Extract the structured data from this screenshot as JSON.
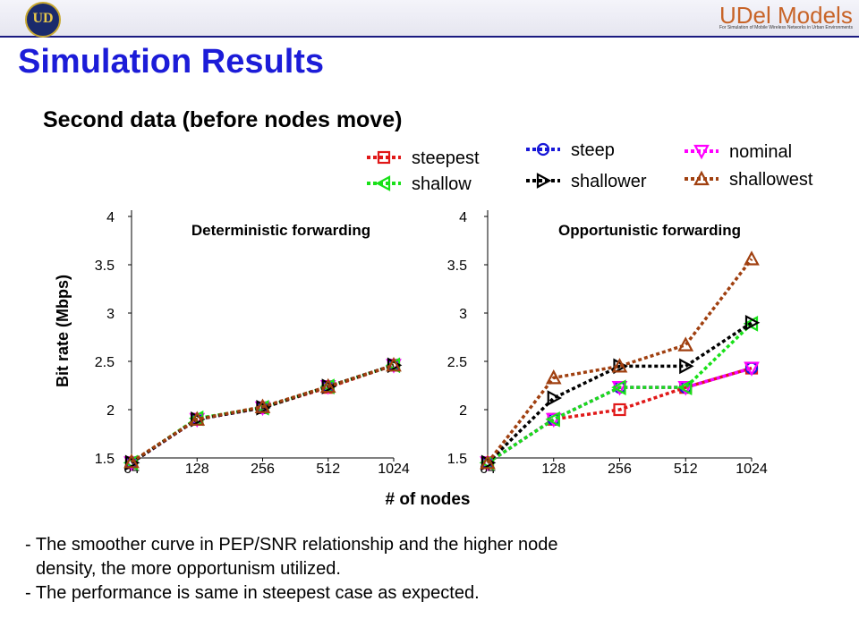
{
  "header": {
    "brand": "UDel Models",
    "brand_tagline": "For Simulation of Mobile Wireless Networks in Urban Environments",
    "seal_text": "UD"
  },
  "title": "Simulation Results",
  "subtitle": "Second data (before nodes move)",
  "legend": [
    {
      "name": "steepest",
      "color": "#e01818",
      "marker": "square"
    },
    {
      "name": "steep",
      "color": "#1818d8",
      "marker": "circle"
    },
    {
      "name": "nominal",
      "color": "#ff00ff",
      "marker": "triangle-down"
    },
    {
      "name": "shallow",
      "color": "#18e018",
      "marker": "triangle-left"
    },
    {
      "name": "shallower",
      "color": "#000000",
      "marker": "triangle-right"
    },
    {
      "name": "shallowest",
      "color": "#a04010",
      "marker": "triangle-up"
    }
  ],
  "shared_ylabel": "Bit rate (Mbps)",
  "shared_xlabel": "# of nodes",
  "chart_data": [
    {
      "type": "line",
      "title": "Deterministic forwarding",
      "categories": [
        "64",
        "128",
        "256",
        "512",
        "1024"
      ],
      "ylim": [
        1.5,
        4
      ],
      "yticks": [
        "1.5",
        "2",
        "2.5",
        "3",
        "3.5",
        "4"
      ],
      "series": [
        {
          "name": "steepest",
          "values": [
            1.45,
            1.9,
            2.02,
            2.23,
            2.46
          ]
        },
        {
          "name": "steep",
          "values": [
            1.45,
            1.9,
            2.02,
            2.24,
            2.46
          ]
        },
        {
          "name": "nominal",
          "values": [
            1.45,
            1.9,
            2.02,
            2.24,
            2.46
          ]
        },
        {
          "name": "shallow",
          "values": [
            1.45,
            1.91,
            2.02,
            2.24,
            2.46
          ]
        },
        {
          "name": "shallower",
          "values": [
            1.45,
            1.9,
            2.02,
            2.24,
            2.46
          ]
        },
        {
          "name": "shallowest",
          "values": [
            1.46,
            1.9,
            2.03,
            2.24,
            2.46
          ]
        }
      ]
    },
    {
      "type": "line",
      "title": "Opportunistic forwarding",
      "categories": [
        "64",
        "128",
        "256",
        "512",
        "1024"
      ],
      "ylim": [
        1.5,
        4
      ],
      "yticks": [
        "1.5",
        "2",
        "2.5",
        "3",
        "3.5",
        "4"
      ],
      "series": [
        {
          "name": "steepest",
          "values": [
            1.45,
            1.9,
            2.0,
            2.23,
            2.43
          ]
        },
        {
          "name": "steep",
          "values": [
            1.45,
            1.9,
            2.23,
            2.23,
            2.43
          ]
        },
        {
          "name": "nominal",
          "values": [
            1.45,
            1.9,
            2.23,
            2.23,
            2.43
          ]
        },
        {
          "name": "shallow",
          "values": [
            1.45,
            1.9,
            2.23,
            2.23,
            2.89
          ]
        },
        {
          "name": "shallower",
          "values": [
            1.45,
            2.12,
            2.45,
            2.45,
            2.9
          ]
        },
        {
          "name": "shallowest",
          "values": [
            1.45,
            2.33,
            2.45,
            2.67,
            3.56
          ]
        }
      ]
    }
  ],
  "notes": [
    "- The smoother curve in PEP/SNR relationship and the higher node",
    "density, the more opportunism utilized.",
    "- The performance is same in steepest case as expected."
  ]
}
